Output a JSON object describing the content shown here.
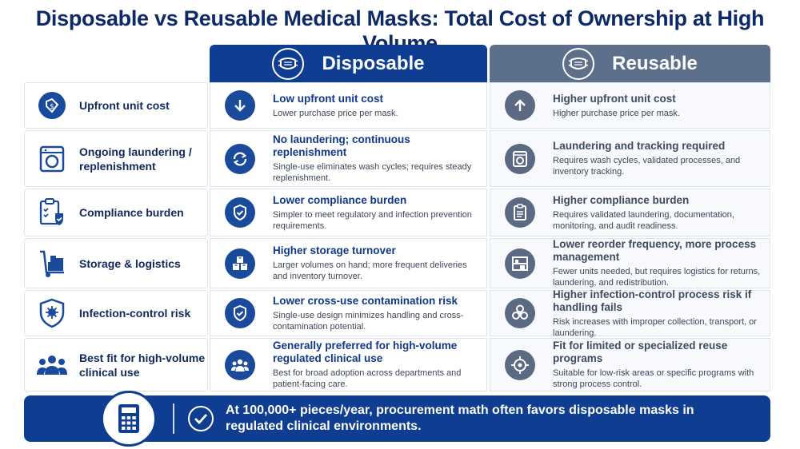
{
  "title": "Disposable vs Reusable Medical Masks: Total Cost of Ownership at High Volume",
  "columns": {
    "disposable": {
      "label": "Disposable",
      "icon": "mask-icon"
    },
    "reusable": {
      "label": "Reusable",
      "icon": "mask-icon"
    }
  },
  "rows": [
    {
      "label": "Upfront unit cost",
      "label_icon": "price-tag-icon",
      "disposable": {
        "icon": "arrow-down-icon",
        "heading": "Low upfront unit cost",
        "detail": "Lower purchase price per mask."
      },
      "reusable": {
        "icon": "arrow-up-icon",
        "heading": "Higher upfront unit cost",
        "detail": "Higher purchase price per mask."
      }
    },
    {
      "label": "Ongoing laundering / replenishment",
      "label_icon": "washing-machine-icon",
      "disposable": {
        "icon": "refresh-icon",
        "heading": "No laundering; continuous  replenishment",
        "detail": "Single-use eliminates wash cycles; requires steady replenishment."
      },
      "reusable": {
        "icon": "washing-machine-icon",
        "heading": "Laundering and tracking required",
        "detail": "Requires wash cycles, validated processes, and inventory tracking."
      }
    },
    {
      "label": "Compliance burden",
      "label_icon": "clipboard-shield-icon",
      "disposable": {
        "icon": "shield-check-icon",
        "heading": "Lower compliance burden",
        "detail": "Simpler to meet regulatory and infection prevention requirements."
      },
      "reusable": {
        "icon": "clipboard-icon",
        "heading": "Higher compliance burden",
        "detail": "Requires validated laundering, documentation, monitoring, and audit readiness."
      }
    },
    {
      "label": "Storage & logistics",
      "label_icon": "hand-truck-icon",
      "disposable": {
        "icon": "boxes-icon",
        "heading": "Higher storage turnover",
        "detail": "Larger volumes on hand; more frequent deliveries and inventory turnover."
      },
      "reusable": {
        "icon": "shelves-icon",
        "heading": "Lower reorder frequency, more process management",
        "detail": "Fewer units needed, but requires logistics for returns, laundering, and redistribution."
      }
    },
    {
      "label": "Infection-control risk",
      "label_icon": "virus-shield-icon",
      "disposable": {
        "icon": "shield-check-icon",
        "heading": "Lower cross-use contamination risk",
        "detail": "Single-use design minimizes handling and cross-contamination potential."
      },
      "reusable": {
        "icon": "biohazard-icon",
        "heading": "Higher infection-control process risk if handling fails",
        "detail": "Risk increases with improper collection, transport, or laundering."
      }
    },
    {
      "label": "Best fit for high-volume clinical use",
      "label_icon": "people-icon",
      "disposable": {
        "icon": "people-icon",
        "heading": "Generally preferred for high-volume regulated clinical use",
        "detail": "Best for broad adoption across departments and patient-facing care."
      },
      "reusable": {
        "icon": "target-icon",
        "heading": "Fit for limited or specialized reuse programs",
        "detail": "Suitable for low-risk areas or specific programs with strong process control."
      }
    }
  ],
  "footer": {
    "icon": "calculator-icon",
    "check_icon": "check-circle-icon",
    "text": "At 100,000+ pieces/year, procurement math often favors disposable masks in regulated clinical environments."
  },
  "colors": {
    "primary": "#0f3d91",
    "secondary": "#5c6f8b",
    "accent_text": "#11398a"
  }
}
